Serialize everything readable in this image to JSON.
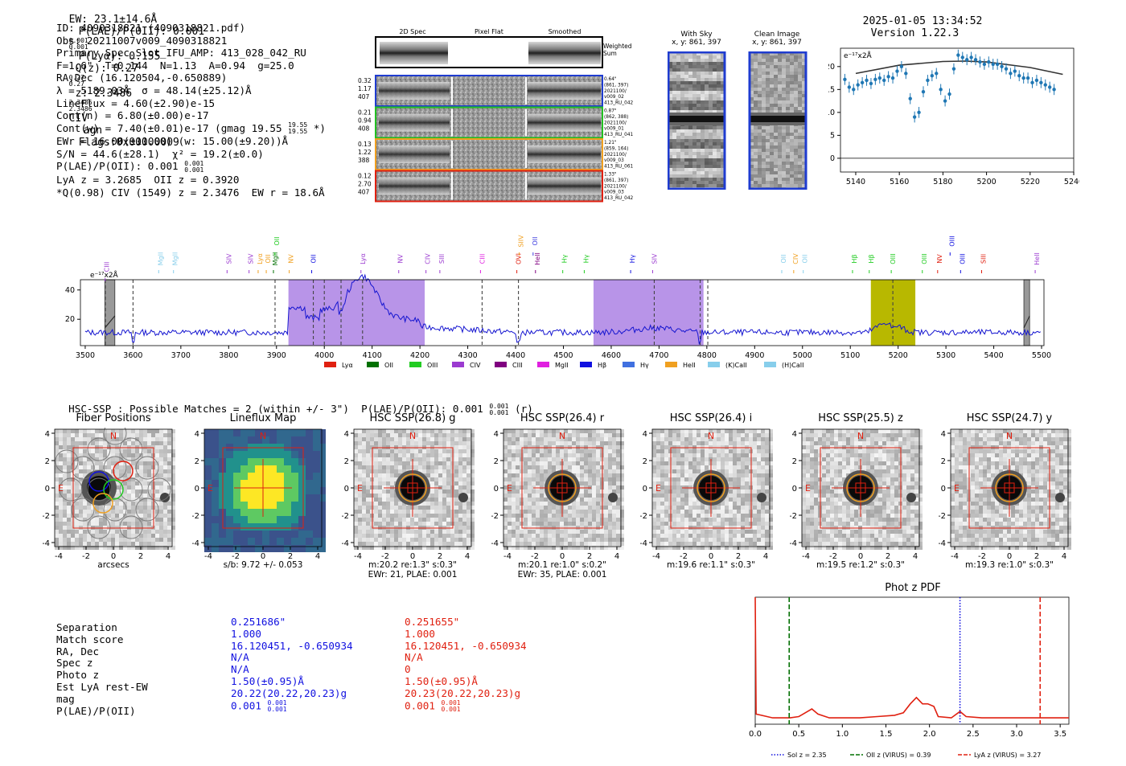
{
  "header": {
    "ew": "EW: 23.1±14.6Å",
    "plae_label": "P(LAE)/P(OII): 0.001",
    "plae_hi": "0.001",
    "plae_lo": "0.001",
    "plya": "P(Lyα): 0.155",
    "qz_label": "Q(z): 0.27",
    "qz_hi": "0.27",
    "qz_lo": "0.27",
    "z_label": "z: 2.3486",
    "z_hi": "2.3486",
    "z_lo": "2.3486",
    "civ": "CIV",
    "agn": "agn",
    "flags": "Flags:0x00000009",
    "datetime": "2025-01-05 13:34:52",
    "version": "Version 1.22.3"
  },
  "info": {
    "id": "ID: 4090318821 (4090318821.pdf)",
    "obs": "Obs: 20211007v009_4090318821",
    "primary": "Primary Spec_Slot_IFU_AMP: 413_028_042_RU",
    "fiber": "F=1.6\"  T=0.144  N=1.13  A=0.94  g=25.0",
    "radec": "RA,Dec (16.120504,-0.650889)",
    "lambda": "λ = 5189.03Å  σ = 48.14(±25.12)Å",
    "lineflux": "LineFlux = 4.60(±2.90)e-15",
    "contn": "Cont(n) = 6.80(±0.00)e-17",
    "contw": "Cont(w) = 7.40(±0.01)e-17 (gmag 19.55",
    "gmag_hi": "19.55",
    "gmag_lo": "19.55",
    "contw_end": "*)",
    "ewr": "EWr = 16.00(±11.00) (w: 15.00(±9.20))Å",
    "sn": "S/N = 44.6(±28.1)  χ² = 19.2(±0.0)",
    "plae": "P(LAE)/P(OII): 0.001",
    "plae_hi": "0.001",
    "plae_lo": "0.001",
    "lya_z": "LyA z = 3.2685  OII z = 0.3920",
    "q_civ": "*Q(0.98) CIV (1549) z = 2.3476  EW r = 18.6Å"
  },
  "fiber_stamps": {
    "col_titles": [
      "2D Spec",
      "Pixel Flat",
      "Smoothed"
    ],
    "weighted_sum": "Weighted Sum",
    "rows": [
      {
        "left": [
          "0.32",
          "1.17",
          "407"
        ],
        "right": [
          "0.64\"",
          "(861, 397)",
          "2021100/",
          "v009_02",
          "413_RU_042"
        ],
        "color": "#1f3cd0"
      },
      {
        "left": [
          "0.21",
          "0.94",
          "408"
        ],
        "right": [
          "0.87\"",
          "(862, 388)",
          "2021100/",
          "v009_01",
          "413_RU_041"
        ],
        "color": "#22c022"
      },
      {
        "left": [
          "0.13",
          "1.22",
          "388"
        ],
        "right": [
          "1.21\"",
          "(859, 164)",
          "2021100/",
          "v009_03",
          "413_RU_061"
        ],
        "color": "#f0a020"
      },
      {
        "left": [
          "0.12",
          "2.70",
          "407"
        ],
        "right": [
          "1.33\"",
          "(861, 397)",
          "2021100/",
          "v009_03",
          "413_RU_042"
        ],
        "color": "#e02010"
      }
    ]
  },
  "ccd": {
    "with_sky_title": "With Sky",
    "with_sky_xy": "x, y: 861, 397",
    "clean_title": "Clean Image",
    "clean_xy": "x, y: 861, 397"
  },
  "zoom_chart": {
    "type": "scatter",
    "unit_label": "e⁻¹⁷x2Å",
    "xlim": [
      5133,
      5240
    ],
    "ylim": [
      -3,
      24
    ],
    "xticks": [
      5140,
      5160,
      5180,
      5200,
      5220,
      5240
    ],
    "yticks": [
      0,
      5,
      10,
      15,
      20
    ],
    "points": [
      [
        5135,
        17.2
      ],
      [
        5137,
        15.5
      ],
      [
        5139,
        15
      ],
      [
        5141,
        16
      ],
      [
        5143,
        16.5
      ],
      [
        5145,
        17
      ],
      [
        5147,
        16.3
      ],
      [
        5149,
        17.2
      ],
      [
        5151,
        17.5
      ],
      [
        5153,
        17
      ],
      [
        5155,
        17.8
      ],
      [
        5157,
        17.5
      ],
      [
        5159,
        19
      ],
      [
        5161,
        20
      ],
      [
        5163,
        18.5
      ],
      [
        5165,
        13
      ],
      [
        5167,
        9
      ],
      [
        5169,
        10
      ],
      [
        5171,
        14.5
      ],
      [
        5173,
        17
      ],
      [
        5175,
        18
      ],
      [
        5177,
        18.5
      ],
      [
        5179,
        15
      ],
      [
        5181,
        12.5
      ],
      [
        5183,
        14
      ],
      [
        5185,
        19.5
      ],
      [
        5187,
        22.5
      ],
      [
        5189,
        22
      ],
      [
        5191,
        21.5
      ],
      [
        5193,
        22
      ],
      [
        5195,
        21.5
      ],
      [
        5197,
        21
      ],
      [
        5199,
        20.5
      ],
      [
        5201,
        21
      ],
      [
        5203,
        20.5
      ],
      [
        5205,
        20.5
      ],
      [
        5207,
        20
      ],
      [
        5209,
        19.5
      ],
      [
        5211,
        18.5
      ],
      [
        5213,
        19
      ],
      [
        5215,
        18
      ],
      [
        5217,
        17.5
      ],
      [
        5219,
        17.5
      ],
      [
        5221,
        16.5
      ],
      [
        5223,
        17
      ],
      [
        5225,
        16.5
      ],
      [
        5227,
        16
      ],
      [
        5229,
        15.5
      ],
      [
        5231,
        15
      ]
    ],
    "fit_curve": [
      [
        5140,
        18.5
      ],
      [
        5160,
        20.3
      ],
      [
        5180,
        21.1
      ],
      [
        5190,
        21.2
      ],
      [
        5200,
        21
      ],
      [
        5220,
        19.8
      ],
      [
        5235,
        18.3
      ]
    ]
  },
  "spectrum": {
    "type": "line",
    "unit_label": "e⁻¹⁷x2Å",
    "xlim": [
      3490,
      5505
    ],
    "ylim": [
      2,
      47
    ],
    "xticks": [
      3500,
      3600,
      3700,
      3800,
      3900,
      4000,
      4100,
      4200,
      4300,
      4400,
      4500,
      4600,
      4700,
      4800,
      4900,
      5000,
      5100,
      5200,
      5300,
      5400,
      5500
    ],
    "yticks": [
      20,
      40
    ],
    "purple_bands": [
      [
        3925,
        4210
      ],
      [
        4563,
        4793
      ]
    ],
    "olive_band": [
      5143,
      5236
    ],
    "gray_bands": [
      [
        3541,
        3562
      ],
      [
        5463,
        5475
      ]
    ],
    "dashed_lines": [
      3542,
      3600,
      3897,
      3977,
      4000,
      4035,
      4080,
      4330,
      4406,
      4690,
      4786,
      4802,
      5189
    ],
    "line_labels": [
      {
        "x": 3545,
        "text": "CIII",
        "color": "#9b3bd0",
        "row": 3
      },
      {
        "x": 3657,
        "text": "MgII",
        "color": "#87ceeb",
        "row": 2
      },
      {
        "x": 3688,
        "text": "MgII",
        "color": "#87ceeb",
        "row": 2
      },
      {
        "x": 3800,
        "text": "SIV",
        "color": "#9b3bd0",
        "row": 2
      },
      {
        "x": 3846,
        "text": "SIV",
        "color": "#9b3bd0",
        "row": 2
      },
      {
        "x": 3865,
        "text": "Lyα",
        "color": "#f0a020",
        "row": 2
      },
      {
        "x": 3882,
        "text": "OII",
        "color": "#f0a020",
        "row": 2
      },
      {
        "x": 3897,
        "text": "MgII",
        "color": "#007000",
        "row": 2
      },
      {
        "x": 3900,
        "text": "OII",
        "color": "#22cc22",
        "row": 1
      },
      {
        "x": 3930,
        "text": "NV",
        "color": "#f0a020",
        "row": 2
      },
      {
        "x": 3977,
        "text": "OII",
        "color": "#1010e0",
        "row": 2
      },
      {
        "x": 4080,
        "text": "Lyα",
        "color": "#9b3bd0",
        "row": 2
      },
      {
        "x": 4159,
        "text": "NV",
        "color": "#9b3bd0",
        "row": 2
      },
      {
        "x": 4216,
        "text": "CIV",
        "color": "#9b3bd0",
        "row": 2
      },
      {
        "x": 4245,
        "text": "SIII",
        "color": "#9b3bd0",
        "row": 2
      },
      {
        "x": 4330,
        "text": "CIII",
        "color": "#e020e0",
        "row": 2
      },
      {
        "x": 4406,
        "text": "OVI",
        "color": "#e02010",
        "row": 2
      },
      {
        "x": 4411,
        "text": "SIIV",
        "color": "#f0a020",
        "row": 1
      },
      {
        "x": 4440,
        "text": "OII",
        "color": "#4040e0",
        "row": 1
      },
      {
        "x": 4445,
        "text": "HeII",
        "color": "#800080",
        "row": 2
      },
      {
        "x": 4502,
        "text": "Hγ",
        "color": "#22cc22",
        "row": 2
      },
      {
        "x": 4547,
        "text": "Hγ",
        "color": "#22cc22",
        "row": 2
      },
      {
        "x": 4644,
        "text": "Hγ",
        "color": "#1010e0",
        "row": 2
      },
      {
        "x": 4690,
        "text": "SIV",
        "color": "#9b3bd0",
        "row": 2
      },
      {
        "x": 4960,
        "text": "OII",
        "color": "#87ceeb",
        "row": 2
      },
      {
        "x": 4985,
        "text": "CIV",
        "color": "#f0a020",
        "row": 2
      },
      {
        "x": 5005,
        "text": "OII",
        "color": "#87ceeb",
        "row": 2
      },
      {
        "x": 5108,
        "text": "Hβ",
        "color": "#22cc22",
        "row": 2
      },
      {
        "x": 5143,
        "text": "Hβ",
        "color": "#22cc22",
        "row": 2
      },
      {
        "x": 5189,
        "text": "OIII",
        "color": "#22cc22",
        "row": 2
      },
      {
        "x": 5254,
        "text": "OIII",
        "color": "#22cc22",
        "row": 2
      },
      {
        "x": 5286,
        "text": "NV",
        "color": "#e02010",
        "row": 2
      },
      {
        "x": 5312,
        "text": "OIII",
        "color": "#1010e0",
        "row": 1
      },
      {
        "x": 5334,
        "text": "OIII",
        "color": "#1010e0",
        "row": 2
      },
      {
        "x": 5378,
        "text": "SIII",
        "color": "#e02010",
        "row": 2
      },
      {
        "x": 5490,
        "text": "HeII",
        "color": "#9b3bd0",
        "row": 2
      }
    ],
    "legend": [
      {
        "label": "Lyα",
        "color": "#e02010"
      },
      {
        "label": "OII",
        "color": "#007000"
      },
      {
        "label": "OIII",
        "color": "#22cc22"
      },
      {
        "label": "CIV",
        "color": "#9b3bd0"
      },
      {
        "label": "CIII",
        "color": "#800080"
      },
      {
        "label": "MgII",
        "color": "#e020e0"
      },
      {
        "label": "Hβ",
        "color": "#1010e0"
      },
      {
        "label": "Hγ",
        "color": "#4070e0"
      },
      {
        "label": "HeII",
        "color": "#f0a020"
      },
      {
        "label": "(K)CaII",
        "color": "#87ceeb"
      },
      {
        "label": "(H)CaII",
        "color": "#87ceeb"
      }
    ]
  },
  "hsc": {
    "summary": "HSC-SSP : Possible Matches = 2 (within +/- 3\")  P(LAE)/P(OII): 0.001",
    "summary_hi": "0.001",
    "summary_lo": "0.001",
    "summary_end": "(r)",
    "panels": [
      {
        "title": "Fiber Positions",
        "caption": [
          "arcsecs"
        ],
        "kind": "fibers"
      },
      {
        "title": "Lineflux Map",
        "caption": [
          "s/b: 9.72 +/- 0.053"
        ],
        "kind": "lineflux"
      },
      {
        "title": "HSC SSP(26.8) g",
        "caption": [
          "m:20.2  re:1.3\"  s:0.3\"",
          "EWr: 21, PLAE: 0.001"
        ],
        "kind": "hsc"
      },
      {
        "title": "HSC SSP(26.4) r",
        "caption": [
          "m:20.1  re:1.0\"  s:0.2\"",
          "EWr: 35, PLAE: 0.001"
        ],
        "kind": "hsc"
      },
      {
        "title": "HSC SSP(26.4) i",
        "caption": [
          "m:19.6  re:1.1\"  s:0.3\""
        ],
        "kind": "hsc"
      },
      {
        "title": "HSC SSP(25.5) z",
        "caption": [
          "m:19.5  re:1.2\"  s:0.3\""
        ],
        "kind": "hsc"
      },
      {
        "title": "HSC SSP(24.7) y",
        "caption": [
          "m:19.3  re:1.0\"  s:0.3\""
        ],
        "kind": "hsc"
      }
    ],
    "axis_ticks": [
      "-4",
      "-2",
      "0",
      "2",
      "4"
    ],
    "north": "N",
    "east": "E"
  },
  "match_table": {
    "labels": [
      "Separation",
      "Match score",
      "RA, Dec",
      "Spec z",
      "Photo z",
      "Est LyA rest-EW",
      "mag",
      "P(LAE)/P(OII)"
    ],
    "col1": [
      "0.251686\"",
      "1.000",
      "16.120451, -0.650934",
      "N/A",
      "N/A",
      "1.50(±0.95)Å",
      "20.22(20.22,20.23)g",
      "0.001"
    ],
    "col1_plae_hi": "0.001",
    "col1_plae_lo": "0.001",
    "col2": [
      "0.251655\"",
      "1.000",
      "16.120451, -0.650934",
      "N/A",
      "0",
      "1.50(±0.95)Å",
      "20.23(20.22,20.23)g",
      "0.001"
    ],
    "col2_plae_hi": "0.001",
    "col2_plae_lo": "0.001",
    "col1_color": "#1010e0",
    "col2_color": "#e02010"
  },
  "photz": {
    "type": "line",
    "title": "Phot z PDF",
    "xlim": [
      0,
      3.6
    ],
    "xticks": [
      "0.0",
      "0.5",
      "1.0",
      "1.5",
      "2.0",
      "2.5",
      "3.0",
      "3.5"
    ],
    "pdf_color": "#e02010",
    "pdf_points": [
      [
        0,
        1.0
      ],
      [
        0.01,
        0.08
      ],
      [
        0.2,
        0.05
      ],
      [
        0.4,
        0.05
      ],
      [
        0.5,
        0.06
      ],
      [
        0.6,
        0.1
      ],
      [
        0.65,
        0.12
      ],
      [
        0.72,
        0.08
      ],
      [
        0.85,
        0.05
      ],
      [
        1.0,
        0.05
      ],
      [
        1.2,
        0.05
      ],
      [
        1.4,
        0.06
      ],
      [
        1.6,
        0.07
      ],
      [
        1.7,
        0.09
      ],
      [
        1.78,
        0.16
      ],
      [
        1.85,
        0.21
      ],
      [
        1.92,
        0.16
      ],
      [
        1.98,
        0.16
      ],
      [
        2.05,
        0.14
      ],
      [
        2.1,
        0.06
      ],
      [
        2.25,
        0.05
      ],
      [
        2.35,
        0.1
      ],
      [
        2.42,
        0.06
      ],
      [
        2.6,
        0.05
      ],
      [
        3.0,
        0.05
      ],
      [
        3.6,
        0.05
      ]
    ],
    "markers": [
      {
        "x": 2.35,
        "label": "Sol z = 2.35",
        "color": "#1010e0",
        "style": "dotted"
      },
      {
        "x": 0.39,
        "label": "OII z (VIRUS) = 0.39",
        "color": "#007000",
        "style": "dashed"
      },
      {
        "x": 3.27,
        "label": "LyA z (VIRUS) = 3.27",
        "color": "#e02010",
        "style": "dashed"
      }
    ]
  }
}
